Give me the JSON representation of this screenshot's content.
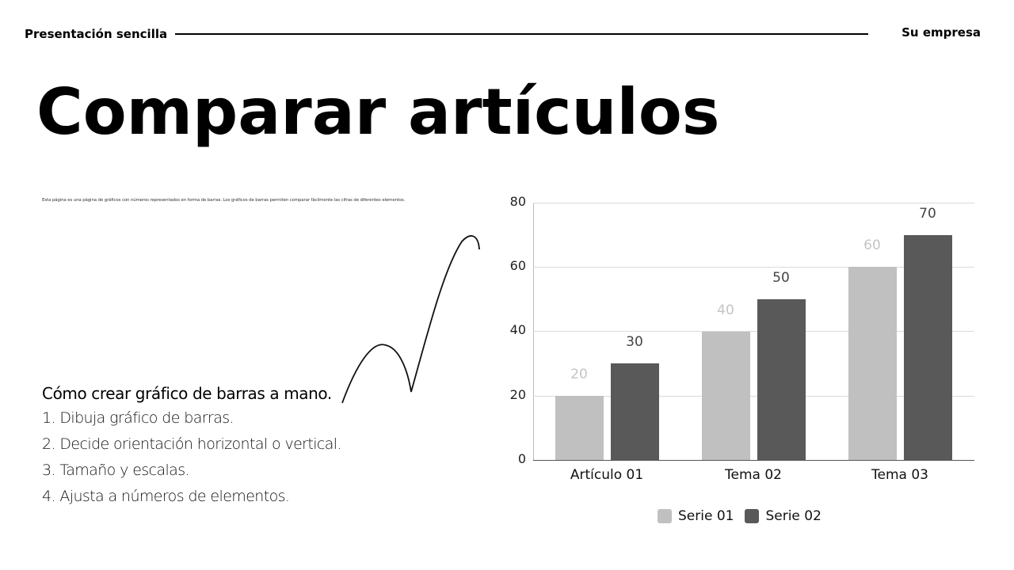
{
  "header": {
    "left_title": "Presentación sencilla",
    "right_title": "Su empresa"
  },
  "slide": {
    "title": "Comparar artículos",
    "description": "Esta página es una página de gráficos con números representados en forma de barras. Los gráficos de barras permiten comparar fácilmente las cifras de diferentes elementos.",
    "howto": {
      "title": "Cómo crear gráfico de barras a mano.",
      "steps": [
        "1. Dibuja gráfico de barras.",
        "2. Decide orientación horizontal o vertical.",
        "3. Tamaño y escalas.",
        "4. Ajusta a números de elementos."
      ]
    }
  },
  "colors": {
    "serie01": "#c0c0c0",
    "serie02": "#595959",
    "serie01_label": "#c4c4c4",
    "serie02_label": "#444444"
  },
  "chart_data": {
    "type": "bar",
    "title": "",
    "xlabel": "",
    "ylabel": "",
    "categories": [
      "Artículo 01",
      "Tema 02",
      "Tema 03"
    ],
    "series": [
      {
        "name": "Serie 01",
        "values": [
          20,
          40,
          60
        ]
      },
      {
        "name": "Serie 02",
        "values": [
          30,
          50,
          70
        ]
      }
    ],
    "yticks": [
      "0",
      "20",
      "40",
      "60",
      "80"
    ],
    "ylim": [
      0,
      80
    ],
    "grid": true,
    "legend_position": "bottom",
    "data_labels": true
  }
}
